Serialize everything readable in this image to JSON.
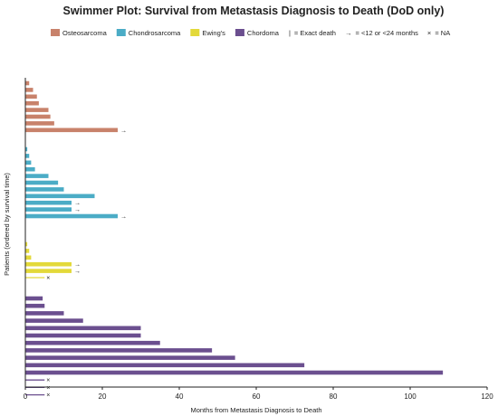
{
  "chart_data": {
    "type": "bar",
    "orientation": "horizontal",
    "title": "Swimmer Plot: Survival from Metastasis Diagnosis to Death (DoD only)",
    "xlabel": "Months from Metastasis Diagnosis to Death",
    "ylabel": "Patients (ordered by survival time)",
    "xlim": [
      0,
      120
    ],
    "xticks": [
      "0",
      "20",
      "40",
      "60",
      "80",
      "100",
      "120"
    ],
    "grid": false,
    "legend_position": "top",
    "legend": [
      {
        "type": "swatch",
        "label": "Osteosarcoma",
        "color": "#c8826b"
      },
      {
        "type": "swatch",
        "label": "Chondrosarcoma",
        "color": "#4bacc6"
      },
      {
        "type": "swatch",
        "label": "Ewing's",
        "color": "#e3d93a"
      },
      {
        "type": "swatch",
        "label": "Chordoma",
        "color": "#6b4f8f"
      },
      {
        "type": "symbol",
        "symbol": "|",
        "label": "= Exact death"
      },
      {
        "type": "symbol",
        "symbol": "→",
        "label": "= <12 or <24 months"
      },
      {
        "type": "symbol",
        "symbol": "×",
        "label": "= NA"
      }
    ],
    "series": [
      {
        "name": "Osteosarcoma",
        "color": "#c8826b",
        "values": [
          1,
          2,
          3,
          3.5,
          6,
          6.5,
          7.5,
          24
        ],
        "markers": [
          "",
          "",
          "",
          "",
          "",
          "",
          "",
          "arrow"
        ]
      },
      {
        "name": "Chondrosarcoma",
        "color": "#4bacc6",
        "values": [
          0.5,
          1,
          1.5,
          2.5,
          6,
          8.5,
          10,
          18,
          12,
          12,
          24
        ],
        "markers": [
          "",
          "",
          "",
          "",
          "",
          "",
          "",
          "",
          "arrow",
          "arrow",
          "arrow"
        ]
      },
      {
        "name": "Ewing's",
        "color": "#e3d93a",
        "values": [
          0.5,
          1,
          1.5,
          12,
          12,
          5
        ],
        "markers": [
          "",
          "",
          "",
          "arrow",
          "arrow",
          "na"
        ]
      },
      {
        "name": "Chordoma",
        "color": "#6b4f8f",
        "values": [
          4.5,
          5,
          10,
          15,
          30,
          30,
          35,
          48.5,
          54.5,
          72.5,
          108.5,
          5,
          5,
          5
        ],
        "markers": [
          "",
          "",
          "",
          "",
          "",
          "",
          "",
          "",
          "",
          "",
          "",
          "na",
          "na",
          "na"
        ]
      }
    ]
  }
}
